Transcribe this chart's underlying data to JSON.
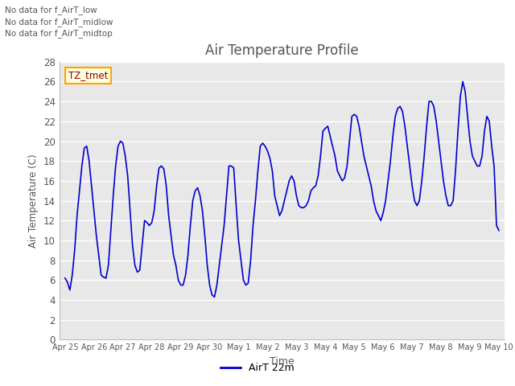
{
  "title": "Air Temperature Profile",
  "xlabel": "Time",
  "ylabel": "Air Temperature (C)",
  "legend_label": "AirT 22m",
  "text_annotations": [
    "No data for f_AirT_low",
    "No data for f_AirT_midlow",
    "No data for f_AirT_midtop"
  ],
  "tooltip_text": "TZ_tmet",
  "ylim": [
    0,
    28
  ],
  "yticks": [
    0,
    2,
    4,
    6,
    8,
    10,
    12,
    14,
    16,
    18,
    20,
    22,
    24,
    26,
    28
  ],
  "line_color": "#0000CC",
  "fig_bg_color": "#FFFFFF",
  "plot_bg_color": "#E8E8E8",
  "grid_color": "#FFFFFF",
  "text_color": "#555555",
  "x_tick_labels": [
    "Apr 25",
    "Apr 26",
    "Apr 27",
    "Apr 28",
    "Apr 29",
    "Apr 30",
    "May 1",
    "May 2",
    "May 3",
    "May 4",
    "May 5",
    "May 6",
    "May 7",
    "May 8",
    "May 9",
    "May 10"
  ],
  "time_values": [
    0,
    0.083,
    0.167,
    0.25,
    0.333,
    0.417,
    0.5,
    0.583,
    0.667,
    0.75,
    0.833,
    0.917,
    1,
    1.083,
    1.167,
    1.25,
    1.333,
    1.417,
    1.5,
    1.583,
    1.667,
    1.75,
    1.833,
    1.917,
    2,
    2.083,
    2.167,
    2.25,
    2.333,
    2.417,
    2.5,
    2.583,
    2.667,
    2.75,
    2.833,
    2.917,
    3,
    3.083,
    3.167,
    3.25,
    3.333,
    3.417,
    3.5,
    3.583,
    3.667,
    3.75,
    3.833,
    3.917,
    4,
    4.083,
    4.167,
    4.25,
    4.333,
    4.417,
    4.5,
    4.583,
    4.667,
    4.75,
    4.833,
    4.917,
    5,
    5.083,
    5.167,
    5.25,
    5.333,
    5.417,
    5.5,
    5.583,
    5.667,
    5.75,
    5.833,
    5.917,
    6,
    6.083,
    6.167,
    6.25,
    6.333,
    6.417,
    6.5,
    6.583,
    6.667,
    6.75,
    6.833,
    6.917,
    7,
    7.083,
    7.167,
    7.25,
    7.333,
    7.417,
    7.5,
    7.583,
    7.667,
    7.75,
    7.833,
    7.917,
    8,
    8.083,
    8.167,
    8.25,
    8.333,
    8.417,
    8.5,
    8.583,
    8.667,
    8.75,
    8.833,
    8.917,
    9,
    9.083,
    9.167,
    9.25,
    9.333,
    9.417,
    9.5,
    9.583,
    9.667,
    9.75,
    9.833,
    9.917,
    10,
    10.083,
    10.167,
    10.25,
    10.333,
    10.417,
    10.5,
    10.583,
    10.667,
    10.75,
    10.833,
    10.917,
    11,
    11.083,
    11.167,
    11.25,
    11.333,
    11.417,
    11.5,
    11.583,
    11.667,
    11.75,
    11.833,
    11.917,
    12,
    12.083,
    12.167,
    12.25,
    12.333,
    12.417,
    12.5,
    12.583,
    12.667,
    12.75,
    12.833,
    12.917,
    13,
    13.083,
    13.167,
    13.25,
    13.333,
    13.417,
    13.5,
    13.583,
    13.667,
    13.75,
    13.833,
    13.917,
    14,
    14.083,
    14.167,
    14.25,
    14.333,
    14.417,
    14.5,
    14.583,
    14.667,
    14.75,
    14.833,
    14.917,
    15
  ],
  "temp_values": [
    6.2,
    5.8,
    5.0,
    6.5,
    9.0,
    12.5,
    15.0,
    17.5,
    19.3,
    19.5,
    18.0,
    15.5,
    13.0,
    10.5,
    8.5,
    6.5,
    6.3,
    6.2,
    7.5,
    11.0,
    14.5,
    17.5,
    19.5,
    20.0,
    19.8,
    18.5,
    16.5,
    13.0,
    9.5,
    7.5,
    6.8,
    7.0,
    9.5,
    12.0,
    11.8,
    11.5,
    11.8,
    13.0,
    15.5,
    17.3,
    17.5,
    17.2,
    15.5,
    12.5,
    10.5,
    8.5,
    7.5,
    6.0,
    5.5,
    5.5,
    6.5,
    8.5,
    11.5,
    14.0,
    15.0,
    15.3,
    14.5,
    13.0,
    10.5,
    7.5,
    5.5,
    4.5,
    4.3,
    5.5,
    7.5,
    9.5,
    11.5,
    14.5,
    17.5,
    17.5,
    17.3,
    13.5,
    10.0,
    8.0,
    6.0,
    5.5,
    5.7,
    8.0,
    11.5,
    14.0,
    17.0,
    19.5,
    19.8,
    19.5,
    19.0,
    18.3,
    17.0,
    14.5,
    13.5,
    12.5,
    13.0,
    14.0,
    15.0,
    16.0,
    16.5,
    16.0,
    14.5,
    13.5,
    13.3,
    13.3,
    13.5,
    14.0,
    15.0,
    15.3,
    15.5,
    16.5,
    18.5,
    21.0,
    21.3,
    21.5,
    20.5,
    19.5,
    18.5,
    17.0,
    16.5,
    16.0,
    16.3,
    17.5,
    20.0,
    22.5,
    22.7,
    22.5,
    21.5,
    20.0,
    18.5,
    17.5,
    16.5,
    15.5,
    14.0,
    13.0,
    12.5,
    12.0,
    12.8,
    14.0,
    16.0,
    18.0,
    20.5,
    22.5,
    23.3,
    23.5,
    23.0,
    21.5,
    19.5,
    17.5,
    15.5,
    14.0,
    13.5,
    14.0,
    16.0,
    18.5,
    21.5,
    24.0,
    24.0,
    23.5,
    22.0,
    20.0,
    18.0,
    16.0,
    14.5,
    13.5,
    13.5,
    14.0,
    17.0,
    21.0,
    24.5,
    26.0,
    25.0,
    22.5,
    20.0,
    18.5,
    18.0,
    17.5,
    17.5,
    18.5,
    21.0,
    22.5,
    22.0,
    19.5,
    17.5,
    11.5,
    11.0
  ]
}
